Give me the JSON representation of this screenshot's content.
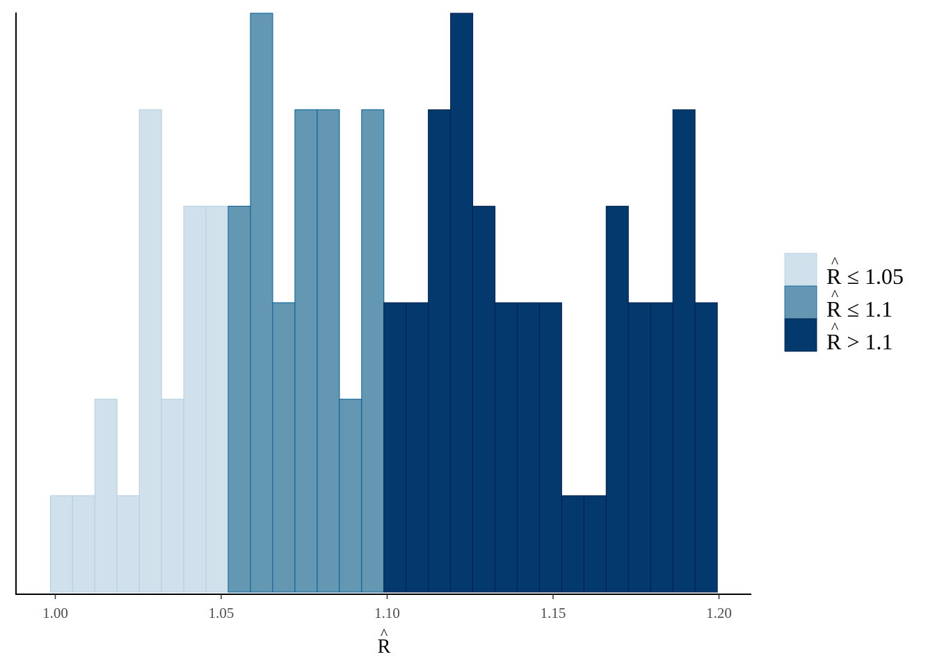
{
  "chart_data": {
    "type": "bar",
    "subtype": "histogram",
    "x_ticks": [
      "1.00",
      "1.05",
      "1.10",
      "1.15",
      "1.20"
    ],
    "x_tick_values": [
      1.0,
      1.05,
      1.1,
      1.15,
      1.2
    ],
    "xlabel": "R",
    "xlabel_accent": "^",
    "xlim": [
      0.995,
      1.21
    ],
    "ylim": [
      0,
      6
    ],
    "grid": false,
    "legend_position": "right",
    "legend": [
      {
        "key": "low",
        "accent": "^",
        "label": "R ≤ 1.05",
        "color": "#d1e1ec",
        "border": "#b3cde0"
      },
      {
        "key": "mid",
        "accent": "^",
        "label": "R ≤ 1.1",
        "color": "#6497b1",
        "border": "#005b96"
      },
      {
        "key": "high",
        "accent": "^",
        "label": "R > 1.1",
        "color": "#03396c",
        "border": "#011f4b"
      }
    ],
    "bins": [
      {
        "start": 0.9985,
        "end": 1.0052,
        "count": 1,
        "group": "low"
      },
      {
        "start": 1.0052,
        "end": 1.0119,
        "count": 1,
        "group": "low"
      },
      {
        "start": 1.0119,
        "end": 1.0186,
        "count": 2,
        "group": "low"
      },
      {
        "start": 1.0186,
        "end": 1.0253,
        "count": 1,
        "group": "low"
      },
      {
        "start": 1.0253,
        "end": 1.032,
        "count": 5,
        "group": "low"
      },
      {
        "start": 1.032,
        "end": 1.0387,
        "count": 2,
        "group": "low"
      },
      {
        "start": 1.0387,
        "end": 1.0454,
        "count": 4,
        "group": "low"
      },
      {
        "start": 1.0454,
        "end": 1.0521,
        "count": 4,
        "group": "low"
      },
      {
        "start": 1.0521,
        "end": 1.0588,
        "count": 4,
        "group": "mid"
      },
      {
        "start": 1.0588,
        "end": 1.0655,
        "count": 6,
        "group": "mid"
      },
      {
        "start": 1.0655,
        "end": 1.0722,
        "count": 3,
        "group": "mid"
      },
      {
        "start": 1.0722,
        "end": 1.0789,
        "count": 5,
        "group": "mid"
      },
      {
        "start": 1.0789,
        "end": 1.0856,
        "count": 5,
        "group": "mid"
      },
      {
        "start": 1.0856,
        "end": 1.0923,
        "count": 2,
        "group": "mid"
      },
      {
        "start": 1.0923,
        "end": 1.099,
        "count": 5,
        "group": "mid"
      },
      {
        "start": 1.099,
        "end": 1.1057,
        "count": 3,
        "group": "high"
      },
      {
        "start": 1.1057,
        "end": 1.1124,
        "count": 3,
        "group": "high"
      },
      {
        "start": 1.1124,
        "end": 1.1191,
        "count": 5,
        "group": "high"
      },
      {
        "start": 1.1191,
        "end": 1.1258,
        "count": 6,
        "group": "high"
      },
      {
        "start": 1.1258,
        "end": 1.1325,
        "count": 4,
        "group": "high"
      },
      {
        "start": 1.1325,
        "end": 1.1392,
        "count": 3,
        "group": "high"
      },
      {
        "start": 1.1392,
        "end": 1.1459,
        "count": 3,
        "group": "high"
      },
      {
        "start": 1.1459,
        "end": 1.1526,
        "count": 3,
        "group": "high"
      },
      {
        "start": 1.1526,
        "end": 1.1593,
        "count": 1,
        "group": "high"
      },
      {
        "start": 1.1593,
        "end": 1.166,
        "count": 1,
        "group": "high"
      },
      {
        "start": 1.166,
        "end": 1.1727,
        "count": 4,
        "group": "high"
      },
      {
        "start": 1.1727,
        "end": 1.1794,
        "count": 3,
        "group": "high"
      },
      {
        "start": 1.1794,
        "end": 1.1861,
        "count": 3,
        "group": "high"
      },
      {
        "start": 1.1861,
        "end": 1.1928,
        "count": 5,
        "group": "high"
      },
      {
        "start": 1.1928,
        "end": 1.1995,
        "count": 3,
        "group": "high"
      }
    ]
  }
}
